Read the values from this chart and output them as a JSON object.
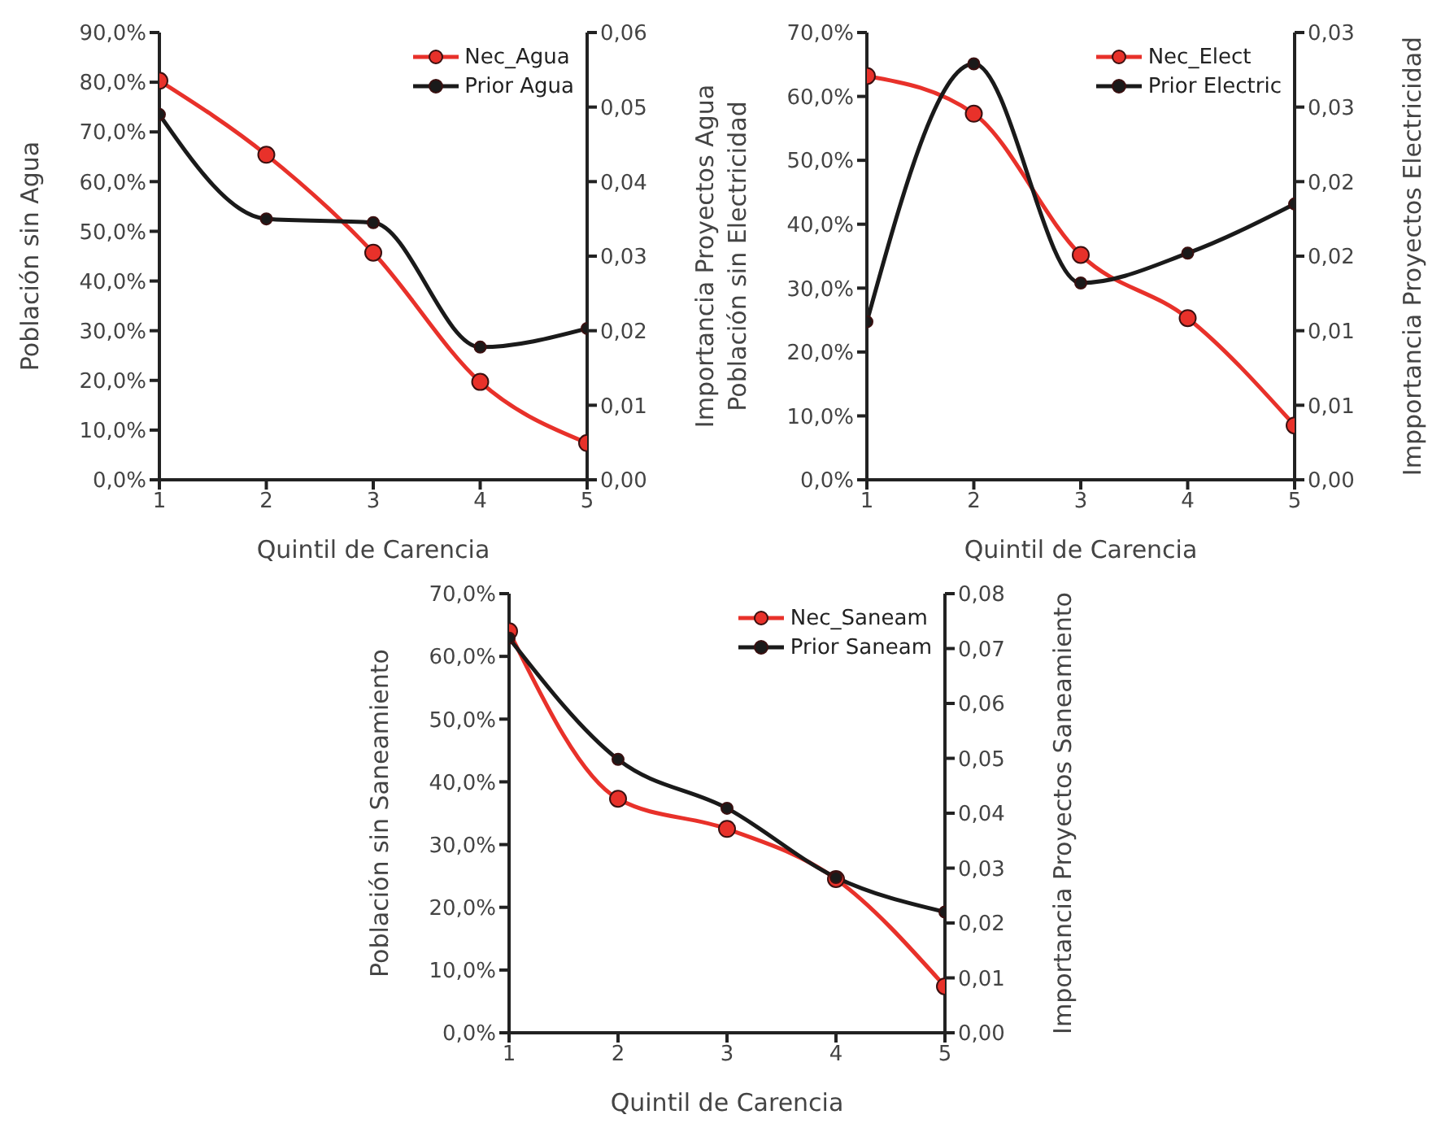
{
  "chart_data": [
    {
      "type": "line",
      "xlabel": "Quintil de Carencia",
      "ylabel": "Población sin Agua",
      "y2label": "Importancia Proyectos Agua",
      "x": [
        1,
        2,
        3,
        4,
        5
      ],
      "xlim": [
        1,
        5
      ],
      "xticks": [
        1,
        2,
        3,
        4,
        5
      ],
      "ylim": [
        0,
        90
      ],
      "yticks": [
        {
          "value": 0,
          "label": "0,0%"
        },
        {
          "value": 10,
          "label": "10,0%"
        },
        {
          "value": 20,
          "label": "20,0%"
        },
        {
          "value": 30,
          "label": "30,0%"
        },
        {
          "value": 40,
          "label": "40,0%"
        },
        {
          "value": 50,
          "label": "50,0%"
        },
        {
          "value": 60,
          "label": "60,0%"
        },
        {
          "value": 70,
          "label": "70,0%"
        },
        {
          "value": 80,
          "label": "80,0%"
        },
        {
          "value": 90,
          "label": "90,0%"
        }
      ],
      "y2lim": [
        0,
        0.06
      ],
      "y2ticks": [
        {
          "value": 0,
          "label": "0,00"
        },
        {
          "value": 0.01,
          "label": "0,01"
        },
        {
          "value": 0.02,
          "label": "0,02"
        },
        {
          "value": 0.03,
          "label": "0,03"
        },
        {
          "value": 0.04,
          "label": "0,04"
        },
        {
          "value": 0.05,
          "label": "0,05"
        },
        {
          "value": 0.06,
          "label": "0,06"
        }
      ],
      "series": [
        {
          "name": "Nec_Agua",
          "color": "#e8312a",
          "values": [
            80.3,
            65.4,
            45.7,
            19.7,
            7.4
          ]
        },
        {
          "name": "Prior Agua",
          "color": "#1a1a1a",
          "axis": "y2",
          "values": [
            0.049,
            0.035,
            0.0345,
            0.0178,
            0.0203
          ]
        }
      ],
      "legend": "top right",
      "marker": "circle",
      "line_style": "solid",
      "grid": false
    },
    {
      "type": "line",
      "xlabel": "Quintil de Carencia",
      "ylabel": "Población sin Electricidad",
      "y2label": "Impportancia Proyectos Electricidad",
      "x": [
        1,
        2,
        3,
        4,
        5
      ],
      "xlim": [
        1,
        5
      ],
      "xticks": [
        1,
        2,
        3,
        4,
        5
      ],
      "ylim": [
        0,
        70
      ],
      "yticks": [
        {
          "value": 0,
          "label": "0,0%"
        },
        {
          "value": 10,
          "label": "10,0%"
        },
        {
          "value": 20,
          "label": "20,0%"
        },
        {
          "value": 30,
          "label": "30,0%"
        },
        {
          "value": 40,
          "label": "40,0%"
        },
        {
          "value": 50,
          "label": "50,0%"
        },
        {
          "value": 60,
          "label": "60,0%"
        },
        {
          "value": 70,
          "label": "70,0%"
        }
      ],
      "y2lim": [
        0,
        0.03
      ],
      "y2ticks": [
        {
          "value": 0,
          "label": "0,00"
        },
        {
          "value": 0.005,
          "label": "0,01"
        },
        {
          "value": 0.01,
          "label": "0,01"
        },
        {
          "value": 0.015,
          "label": "0,02"
        },
        {
          "value": 0.02,
          "label": "0,02"
        },
        {
          "value": 0.025,
          "label": "0,03"
        },
        {
          "value": 0.03,
          "label": "0,03"
        }
      ],
      "series": [
        {
          "name": "Nec_Elect",
          "color": "#e8312a",
          "values": [
            63.2,
            57.3,
            35.2,
            25.3,
            8.5
          ]
        },
        {
          "name": "Prior Electric",
          "color": "#1a1a1a",
          "axis": "y2",
          "values": [
            0.0106,
            0.0279,
            0.0132,
            0.0152,
            0.0185
          ]
        }
      ],
      "legend": "top right",
      "marker": "circle",
      "line_style": "solid",
      "grid": false
    },
    {
      "type": "line",
      "xlabel": "Quintil de Carencia",
      "ylabel": "Población sin Saneamiento",
      "y2label": "Importancia Proyectos Saneamiento",
      "x": [
        1,
        2,
        3,
        4,
        5
      ],
      "xlim": [
        1,
        5
      ],
      "xticks": [
        1,
        2,
        3,
        4,
        5
      ],
      "ylim": [
        0,
        70
      ],
      "yticks": [
        {
          "value": 0,
          "label": "0,0%"
        },
        {
          "value": 10,
          "label": "10,0%"
        },
        {
          "value": 20,
          "label": "20,0%"
        },
        {
          "value": 30,
          "label": "30,0%"
        },
        {
          "value": 40,
          "label": "40,0%"
        },
        {
          "value": 50,
          "label": "50,0%"
        },
        {
          "value": 60,
          "label": "60,0%"
        },
        {
          "value": 70,
          "label": "70,0%"
        }
      ],
      "y2lim": [
        0,
        0.08
      ],
      "y2ticks": [
        {
          "value": 0,
          "label": "0,00"
        },
        {
          "value": 0.01,
          "label": "0,01"
        },
        {
          "value": 0.02,
          "label": "0,02"
        },
        {
          "value": 0.03,
          "label": "0,03"
        },
        {
          "value": 0.04,
          "label": "0,04"
        },
        {
          "value": 0.05,
          "label": "0,05"
        },
        {
          "value": 0.06,
          "label": "0,06"
        },
        {
          "value": 0.07,
          "label": "0,07"
        },
        {
          "value": 0.08,
          "label": "0,08"
        }
      ],
      "series": [
        {
          "name": "Nec_Saneam",
          "color": "#e8312a",
          "values": [
            64.0,
            37.3,
            32.5,
            24.5,
            7.4
          ]
        },
        {
          "name": "Prior Saneam",
          "color": "#1a1a1a",
          "axis": "y2",
          "values": [
            0.0719,
            0.0498,
            0.0409,
            0.0283,
            0.022
          ]
        }
      ],
      "legend": "top right",
      "marker": "circle",
      "line_style": "solid",
      "grid": false
    }
  ]
}
